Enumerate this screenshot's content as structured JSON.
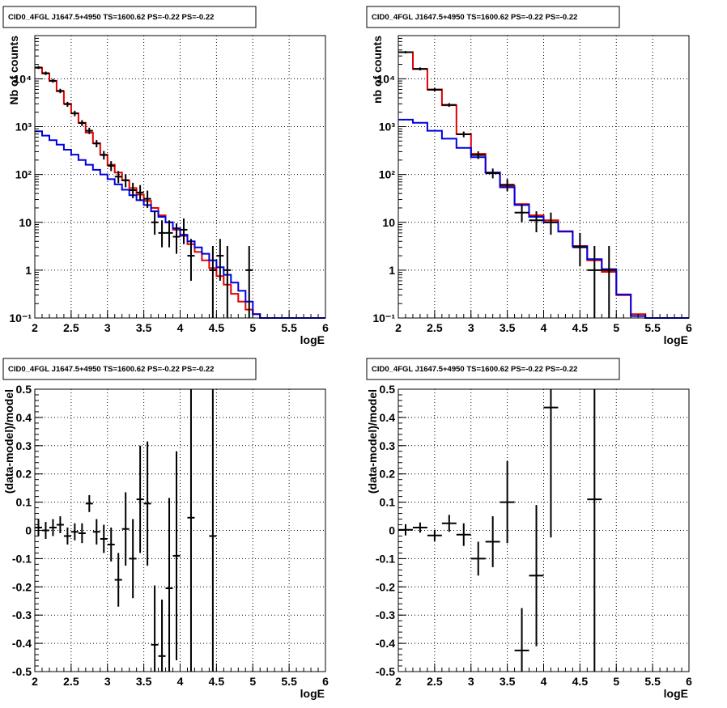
{
  "chart_data": [
    {
      "type": "line",
      "title": "CID0_4FGL J1647.5+4950 TS=1600.62 PS=-0.22 PS=-0.22",
      "xlabel": "logE",
      "ylabel": "Nb of counts",
      "log_y": true,
      "grid": true,
      "xlim": [
        2,
        6
      ],
      "ylim": [
        0.1,
        80000
      ],
      "x_ticks": [
        "2",
        "2.5",
        "3",
        "3.5",
        "4",
        "4.5",
        "5",
        "5.5",
        "6"
      ],
      "y_ticks": [
        "10",
        "10²",
        "10³",
        "10⁴",
        "1",
        "10⁻¹"
      ],
      "y_tick_values": [
        10,
        100,
        1000,
        10000,
        1,
        0.1
      ],
      "edges": [
        2.0,
        2.1,
        2.2,
        2.3,
        2.4,
        2.5,
        2.6,
        2.7,
        2.8,
        2.9,
        3.0,
        3.1,
        3.2,
        3.3,
        3.4,
        3.5,
        3.6,
        3.7,
        3.8,
        3.9,
        4.0,
        4.1,
        4.2,
        4.3,
        4.4,
        4.5,
        4.6,
        4.7,
        4.8,
        4.9,
        5.0,
        5.1,
        5.2,
        5.3,
        5.4,
        5.5,
        5.6,
        5.7,
        5.8,
        5.9,
        6.0
      ],
      "series": [
        {
          "color": "#e00000",
          "values": [
            17000,
            13000,
            9000,
            5500,
            3000,
            1900,
            1200,
            750,
            450,
            260,
            160,
            110,
            75,
            52,
            38,
            28,
            20,
            14,
            10,
            7,
            5.2,
            3.5,
            2.4,
            1.6,
            1.1,
            0.75,
            0.5,
            0.32,
            0.22,
            0.15,
            0.12,
            0.1,
            0.1,
            0.1,
            0.1,
            0.1,
            0.1,
            0.1,
            0.1,
            0.1
          ]
        },
        {
          "color": "#0000e0",
          "values": [
            800,
            650,
            520,
            420,
            330,
            260,
            200,
            160,
            125,
            100,
            80,
            62,
            48,
            37,
            29,
            23,
            17,
            13,
            10,
            7.5,
            5.5,
            4,
            3,
            2.2,
            1.6,
            1.15,
            0.8,
            0.55,
            0.37,
            0.22,
            0.12,
            0.1,
            0.1,
            0.1,
            0.1,
            0.1,
            0.1,
            0.1,
            0.1,
            0.1
          ]
        }
      ],
      "points": [
        {
          "x": 2.05,
          "y": 17200,
          "lo": 16000,
          "hi": 18500
        },
        {
          "x": 2.15,
          "y": 13100,
          "lo": 12000,
          "hi": 14200
        },
        {
          "x": 2.25,
          "y": 9100,
          "lo": 8300,
          "hi": 10000
        },
        {
          "x": 2.35,
          "y": 5600,
          "lo": 5000,
          "hi": 6200
        },
        {
          "x": 2.45,
          "y": 2950,
          "lo": 2600,
          "hi": 3300
        },
        {
          "x": 2.55,
          "y": 1890,
          "lo": 1650,
          "hi": 2150
        },
        {
          "x": 2.65,
          "y": 1190,
          "lo": 1030,
          "hi": 1370
        },
        {
          "x": 2.75,
          "y": 820,
          "lo": 700,
          "hi": 950
        },
        {
          "x": 2.85,
          "y": 445,
          "lo": 370,
          "hi": 525
        },
        {
          "x": 2.95,
          "y": 255,
          "lo": 205,
          "hi": 310
        },
        {
          "x": 3.05,
          "y": 152,
          "lo": 118,
          "hi": 190
        },
        {
          "x": 3.15,
          "y": 90,
          "lo": 66,
          "hi": 118
        },
        {
          "x": 3.25,
          "y": 76,
          "lo": 54,
          "hi": 102
        },
        {
          "x": 3.35,
          "y": 47,
          "lo": 32,
          "hi": 67
        },
        {
          "x": 3.45,
          "y": 42,
          "lo": 28,
          "hi": 60
        },
        {
          "x": 3.55,
          "y": 31,
          "lo": 20,
          "hi": 46
        },
        {
          "x": 3.65,
          "y": 10,
          "lo": 5.5,
          "hi": 17
        },
        {
          "x": 3.75,
          "y": 6,
          "lo": 3,
          "hi": 11
        },
        {
          "x": 3.85,
          "y": 6,
          "lo": 3,
          "hi": 11
        },
        {
          "x": 3.95,
          "y": 5,
          "lo": 2.2,
          "hi": 9.5
        },
        {
          "x": 4.05,
          "y": 7,
          "lo": 3.5,
          "hi": 12
        },
        {
          "x": 4.15,
          "y": 2,
          "lo": 0.6,
          "hi": 4.5
        },
        {
          "x": 4.45,
          "y": 1,
          "lo": 0.1,
          "hi": 3.2
        },
        {
          "x": 4.55,
          "y": 2,
          "lo": 0.6,
          "hi": 4.5
        },
        {
          "x": 4.65,
          "y": 1,
          "lo": 0.1,
          "hi": 3.2
        },
        {
          "x": 4.95,
          "y": 1,
          "lo": 0.1,
          "hi": 3.2
        }
      ]
    },
    {
      "type": "line",
      "title": "CID0_4FGL J1647.5+4950 TS=1600.62 PS=-0.22 PS=-0.22",
      "xlabel": "logE",
      "ylabel": "nb of counts",
      "log_y": true,
      "grid": true,
      "xlim": [
        2,
        6
      ],
      "ylim": [
        0.1,
        80000
      ],
      "x_ticks": [
        "2",
        "2.5",
        "3",
        "3.5",
        "4",
        "4.5",
        "5",
        "5.5",
        "6"
      ],
      "y_ticks": [
        "10",
        "10²",
        "10³",
        "10⁴",
        "1",
        "10⁻¹"
      ],
      "y_tick_values": [
        10,
        100,
        1000,
        10000,
        1,
        0.1
      ],
      "edges": [
        2.0,
        2.2,
        2.4,
        2.6,
        2.8,
        3.0,
        3.2,
        3.4,
        3.6,
        3.8,
        4.0,
        4.2,
        4.4,
        4.6,
        4.8,
        5.0,
        5.2,
        5.4,
        5.6,
        5.8,
        6.0
      ],
      "series": [
        {
          "color": "#e00000",
          "values": [
            36000,
            16000,
            6000,
            2800,
            700,
            270,
            110,
            58,
            24,
            14,
            11,
            6.5,
            3.2,
            1.6,
            0.92,
            0.3,
            0.12,
            0.1,
            0.1,
            0.1
          ]
        },
        {
          "color": "#0000e0",
          "values": [
            1400,
            1200,
            820,
            560,
            360,
            230,
            110,
            54,
            23,
            13,
            10,
            6.4,
            3.1,
            1.7,
            1.05,
            0.31,
            0.11,
            0.1,
            0.1,
            0.1
          ]
        }
      ],
      "points": [
        {
          "x": 2.1,
          "y": 36000,
          "lo": 34000,
          "hi": 38000
        },
        {
          "x": 2.3,
          "y": 16100,
          "lo": 15000,
          "hi": 17300
        },
        {
          "x": 2.5,
          "y": 5900,
          "lo": 5400,
          "hi": 6400
        },
        {
          "x": 2.7,
          "y": 2850,
          "lo": 2600,
          "hi": 3100
        },
        {
          "x": 2.9,
          "y": 690,
          "lo": 600,
          "hi": 790
        },
        {
          "x": 3.1,
          "y": 255,
          "lo": 210,
          "hi": 305
        },
        {
          "x": 3.3,
          "y": 106,
          "lo": 83,
          "hi": 133
        },
        {
          "x": 3.5,
          "y": 61,
          "lo": 45,
          "hi": 80
        },
        {
          "x": 3.7,
          "y": 16,
          "lo": 10,
          "hi": 24
        },
        {
          "x": 3.9,
          "y": 11,
          "lo": 6.2,
          "hi": 17
        },
        {
          "x": 4.1,
          "y": 10,
          "lo": 5.5,
          "hi": 16
        },
        {
          "x": 4.5,
          "y": 3,
          "lo": 1.2,
          "hi": 6
        },
        {
          "x": 4.7,
          "y": 1,
          "lo": 0.1,
          "hi": 3.2
        },
        {
          "x": 4.9,
          "y": 1,
          "lo": 0.1,
          "hi": 3.2
        }
      ]
    },
    {
      "type": "scatter",
      "title": "CID0_4FGL J1647.5+4950 TS=1600.62 PS=-0.22 PS=-0.22",
      "xlabel": "logE",
      "ylabel": "(data-model)/model",
      "grid": true,
      "xlim": [
        2,
        6
      ],
      "ylim": [
        -0.5,
        0.5
      ],
      "x_ticks": [
        "2",
        "2.5",
        "3",
        "3.5",
        "4",
        "4.5",
        "5",
        "5.5",
        "6"
      ],
      "y_ticks": [
        "0.5",
        "0.4",
        "0.3",
        "0.2",
        "0.1",
        "0",
        "-0.1",
        "-0.2",
        "-0.3",
        "-0.4",
        "-0.5"
      ],
      "y_tick_values": [
        0.5,
        0.4,
        0.3,
        0.2,
        0.1,
        0,
        -0.1,
        -0.2,
        -0.3,
        -0.4,
        -0.5
      ],
      "half_width": 0.05,
      "points": [
        {
          "x": 2.05,
          "y": 0.01,
          "err": 0.03
        },
        {
          "x": 2.15,
          "y": 0.0,
          "err": 0.03
        },
        {
          "x": 2.25,
          "y": 0.01,
          "err": 0.03
        },
        {
          "x": 2.35,
          "y": 0.02,
          "err": 0.03
        },
        {
          "x": 2.45,
          "y": -0.02,
          "err": 0.03
        },
        {
          "x": 2.55,
          "y": -0.005,
          "err": 0.03
        },
        {
          "x": 2.65,
          "y": -0.01,
          "err": 0.035
        },
        {
          "x": 2.75,
          "y": 0.095,
          "err": 0.03
        },
        {
          "x": 2.85,
          "y": -0.005,
          "err": 0.045
        },
        {
          "x": 2.95,
          "y": -0.03,
          "err": 0.05
        },
        {
          "x": 3.05,
          "y": -0.05,
          "err": 0.06
        },
        {
          "x": 3.15,
          "y": -0.175,
          "err": 0.095
        },
        {
          "x": 3.25,
          "y": 0.005,
          "err": 0.13
        },
        {
          "x": 3.35,
          "y": -0.1,
          "err": 0.14
        },
        {
          "x": 3.45,
          "y": 0.11,
          "err": 0.19
        },
        {
          "x": 3.55,
          "y": 0.095,
          "err": 0.22
        },
        {
          "x": 3.65,
          "y": -0.405,
          "err": 0.21
        },
        {
          "x": 3.75,
          "y": -0.445,
          "err": 0.2
        },
        {
          "x": 3.85,
          "y": -0.205,
          "err": 0.32
        },
        {
          "x": 3.95,
          "y": -0.09,
          "err": 0.37
        },
        {
          "x": 4.15,
          "y": 0.045,
          "err": 0.6
        },
        {
          "x": 4.45,
          "y": -0.02,
          "err": 1.0
        }
      ]
    },
    {
      "type": "scatter",
      "title": "CID0_4FGL J1647.5+4950 TS=1600.62 PS=-0.22 PS=-0.22",
      "xlabel": "logE",
      "ylabel": "(data-model)/model",
      "grid": true,
      "xlim": [
        2,
        6
      ],
      "ylim": [
        -0.5,
        0.5
      ],
      "x_ticks": [
        "2",
        "2.5",
        "3",
        "3.5",
        "4",
        "4.5",
        "5",
        "5.5",
        "6"
      ],
      "y_ticks": [
        "0.5",
        "0.4",
        "0.3",
        "0.2",
        "0.1",
        "0",
        "-0.1",
        "-0.2",
        "-0.3",
        "-0.4",
        "-0.5"
      ],
      "y_tick_values": [
        0.5,
        0.4,
        0.3,
        0.2,
        0.1,
        0,
        -0.1,
        -0.2,
        -0.3,
        -0.4,
        -0.5
      ],
      "half_width": 0.1,
      "points": [
        {
          "x": 2.1,
          "y": 0.002,
          "err": 0.02
        },
        {
          "x": 2.3,
          "y": 0.01,
          "err": 0.018
        },
        {
          "x": 2.5,
          "y": -0.018,
          "err": 0.02
        },
        {
          "x": 2.7,
          "y": 0.025,
          "err": 0.03
        },
        {
          "x": 2.9,
          "y": -0.015,
          "err": 0.04
        },
        {
          "x": 3.1,
          "y": -0.1,
          "err": 0.06
        },
        {
          "x": 3.3,
          "y": -0.04,
          "err": 0.09
        },
        {
          "x": 3.5,
          "y": 0.1,
          "err": 0.145
        },
        {
          "x": 3.7,
          "y": -0.425,
          "err": 0.15
        },
        {
          "x": 3.9,
          "y": -0.16,
          "err": 0.25
        },
        {
          "x": 4.1,
          "y": 0.435,
          "err": 0.46
        },
        {
          "x": 4.7,
          "y": 0.11,
          "err": 1.0
        }
      ]
    }
  ]
}
